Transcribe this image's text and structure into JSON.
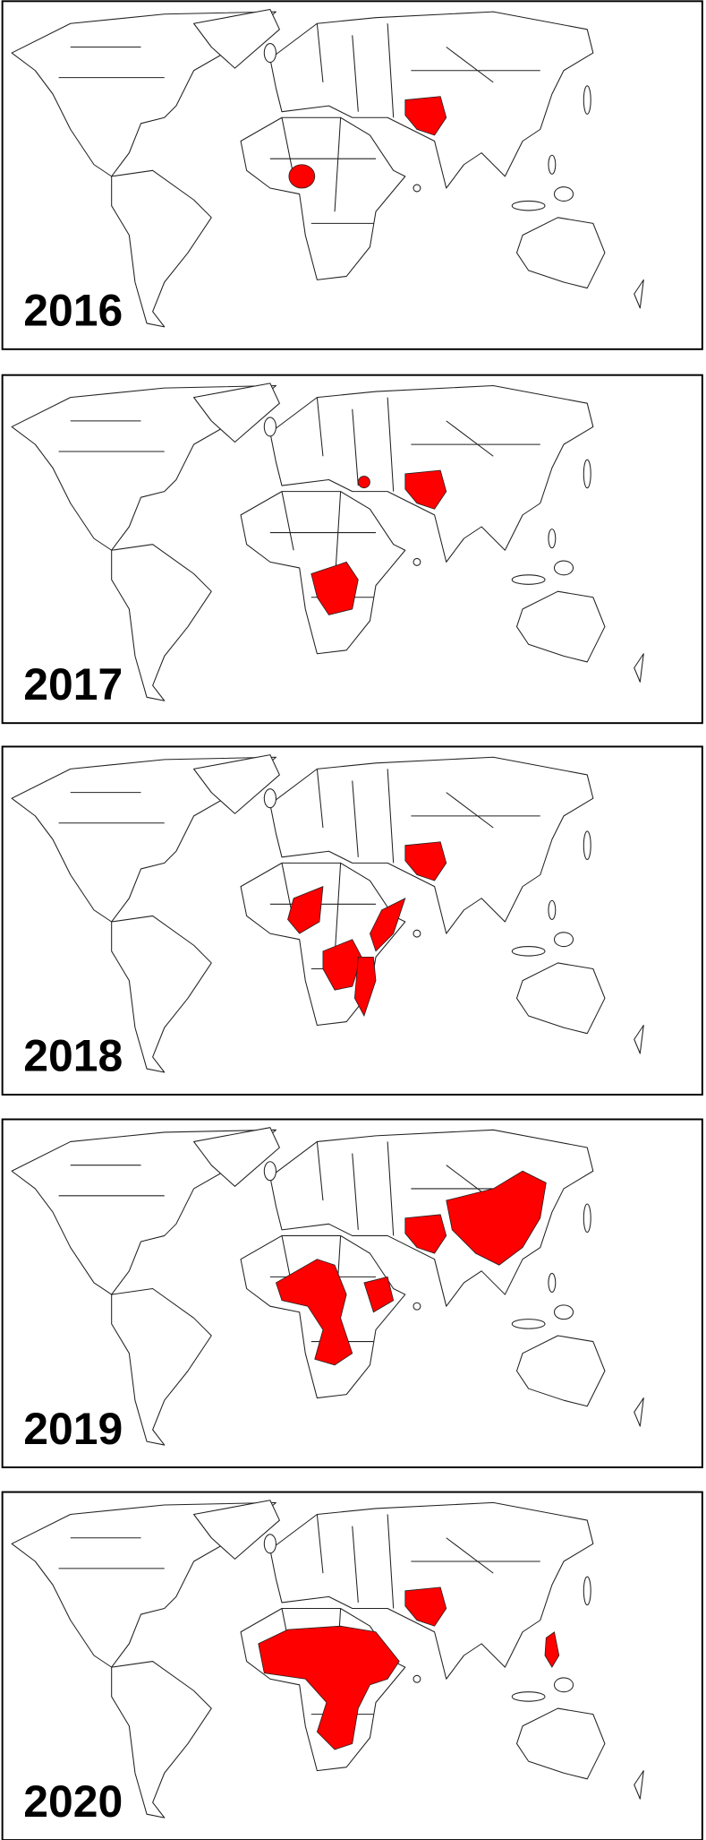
{
  "panels": [
    {
      "label": "2016"
    },
    {
      "label": "2017"
    },
    {
      "label": "2018"
    },
    {
      "label": "2019"
    },
    {
      "label": "2020"
    }
  ]
}
